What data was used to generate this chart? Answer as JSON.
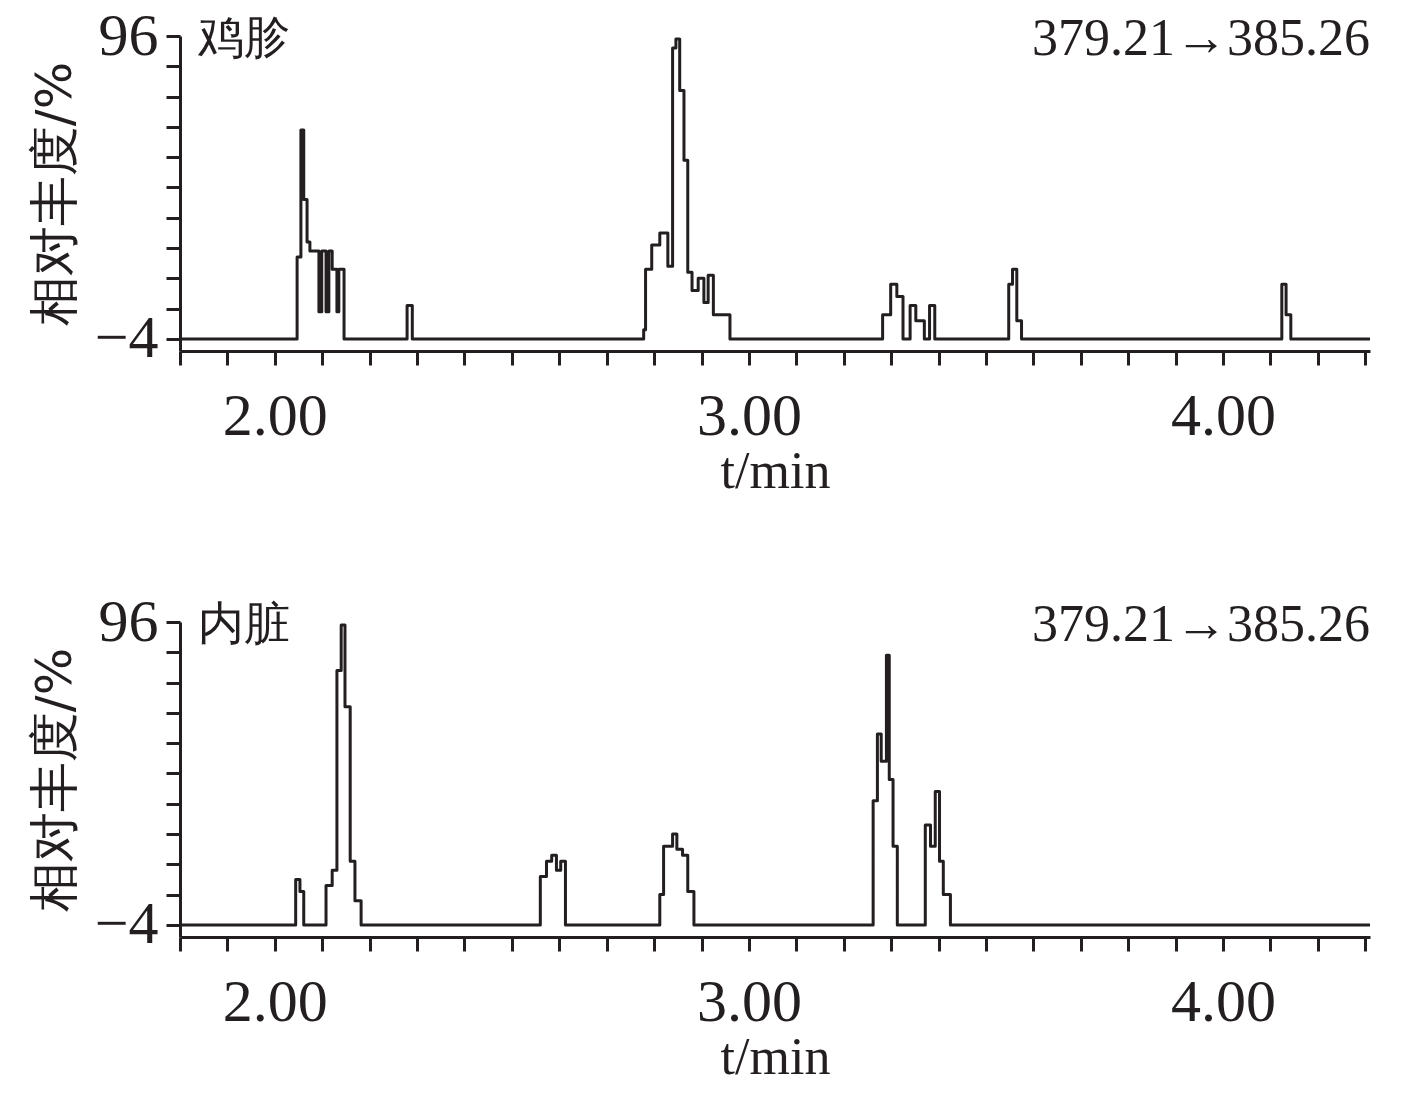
{
  "chart_data": [
    {
      "type": "step",
      "xlabel": "t/min",
      "ylabel": "相对丰度/%",
      "annotations": [
        "鸡胗",
        "379.21→385.26"
      ],
      "x": [
        1.8,
        2.047,
        2.055,
        2.061,
        2.068,
        2.074,
        2.093,
        2.099,
        2.108,
        2.114,
        2.121,
        2.131,
        2.135,
        2.146,
        2.279,
        2.29,
        2.778,
        2.782,
        2.795,
        2.812,
        2.829,
        2.839,
        2.846,
        2.854,
        2.863,
        2.871,
        2.88,
        2.893,
        2.905,
        2.914,
        2.925,
        2.935,
        2.96,
        3.282,
        3.299,
        3.312,
        3.325,
        3.34,
        3.352,
        3.37,
        3.381,
        3.392,
        3.548,
        3.556,
        3.565,
        3.575,
        4.124,
        4.133,
        4.143,
        4.31
      ],
      "series": [
        {
          "color": "#231f20",
          "values": [
            -4,
            23,
            65,
            42,
            28,
            25,
            5,
            25,
            5,
            25,
            19,
            5,
            19,
            -4,
            7,
            -4,
            -1,
            19,
            27,
            31,
            20,
            92,
            95,
            78,
            55,
            18,
            12,
            16,
            8,
            17,
            4,
            4,
            -4,
            4,
            14,
            10,
            -4,
            7,
            2,
            -4,
            7,
            -4,
            14,
            19,
            2,
            -4,
            14,
            4,
            -4,
            -4
          ]
        }
      ],
      "xlim": [
        1.8,
        4.31
      ],
      "ylim": [
        -8,
        96
      ],
      "xticks": [
        {
          "value": 1.8,
          "label": null
        },
        {
          "value": 1.9,
          "label": null
        },
        {
          "value": 2,
          "label": "2.00"
        },
        {
          "value": 2.1,
          "label": null
        },
        {
          "value": 2.2,
          "label": null
        },
        {
          "value": 2.3,
          "label": null
        },
        {
          "value": 2.4,
          "label": null
        },
        {
          "value": 2.5,
          "label": null
        },
        {
          "value": 2.6,
          "label": null
        },
        {
          "value": 2.7,
          "label": null
        },
        {
          "value": 2.8,
          "label": null
        },
        {
          "value": 2.9,
          "label": null
        },
        {
          "value": 3,
          "label": "3.00"
        },
        {
          "value": 3.1,
          "label": null
        },
        {
          "value": 3.2,
          "label": null
        },
        {
          "value": 3.3,
          "label": null
        },
        {
          "value": 3.4,
          "label": null
        },
        {
          "value": 3.5,
          "label": null
        },
        {
          "value": 3.6,
          "label": null
        },
        {
          "value": 3.7,
          "label": null
        },
        {
          "value": 3.8,
          "label": null
        },
        {
          "value": 3.9,
          "label": null
        },
        {
          "value": 4,
          "label": "4.00"
        },
        {
          "value": 4.1,
          "label": null
        },
        {
          "value": 4.2,
          "label": null
        },
        {
          "value": 4.3,
          "label": null
        }
      ],
      "yticks": [
        {
          "value": -4,
          "label": "−4"
        },
        {
          "value": 6,
          "label": null
        },
        {
          "value": 16,
          "label": null
        },
        {
          "value": 26,
          "label": null
        },
        {
          "value": 36,
          "label": null
        },
        {
          "value": 46,
          "label": null
        },
        {
          "value": 56,
          "label": null
        },
        {
          "value": 66,
          "label": null
        },
        {
          "value": 76,
          "label": null
        },
        {
          "value": 86,
          "label": null
        },
        96
      ]
    },
    {
      "type": "step",
      "xlabel": "t/min",
      "ylabel": "相对丰度/%",
      "annotations": [
        "内脏",
        "379.21→385.26"
      ],
      "x": [
        1.8,
        2.044,
        2.053,
        2.061,
        2.108,
        2.121,
        2.131,
        2.14,
        2.148,
        2.159,
        2.169,
        2.182,
        2.56,
        2.573,
        2.584,
        2.594,
        2.603,
        2.613,
        2.812,
        2.82,
        2.839,
        2.848,
        2.86,
        2.871,
        2.884,
        3.262,
        3.271,
        3.279,
        3.29,
        3.296,
        3.304,
        3.313,
        3.372,
        3.383,
        3.393,
        3.402,
        3.41,
        3.425,
        4.31
      ],
      "series": [
        {
          "color": "#231f20",
          "values": [
            -4,
            11,
            7,
            -4,
            9,
            14,
            80,
            95,
            68,
            17,
            4,
            -4,
            12,
            17,
            19,
            14,
            17,
            -4,
            6,
            22,
            26,
            21,
            19,
            7,
            -4,
            37,
            59,
            50,
            85,
            44,
            22,
            -4,
            29,
            22,
            40,
            17,
            6,
            -4,
            -4
          ]
        }
      ],
      "xlim": [
        1.8,
        4.31
      ],
      "ylim": [
        -8,
        96
      ],
      "xticks": [
        {
          "value": 1.8,
          "label": null
        },
        {
          "value": 1.9,
          "label": null
        },
        {
          "value": 2,
          "label": "2.00"
        },
        {
          "value": 2.1,
          "label": null
        },
        {
          "value": 2.2,
          "label": null
        },
        {
          "value": 2.3,
          "label": null
        },
        {
          "value": 2.4,
          "label": null
        },
        {
          "value": 2.5,
          "label": null
        },
        {
          "value": 2.6,
          "label": null
        },
        {
          "value": 2.7,
          "label": null
        },
        {
          "value": 2.8,
          "label": null
        },
        {
          "value": 2.9,
          "label": null
        },
        {
          "value": 3,
          "label": "3.00"
        },
        {
          "value": 3.1,
          "label": null
        },
        {
          "value": 3.2,
          "label": null
        },
        {
          "value": 3.3,
          "label": null
        },
        {
          "value": 3.4,
          "label": null
        },
        {
          "value": 3.5,
          "label": null
        },
        {
          "value": 3.6,
          "label": null
        },
        {
          "value": 3.7,
          "label": null
        },
        {
          "value": 3.8,
          "label": null
        },
        {
          "value": 3.9,
          "label": null
        },
        {
          "value": 4,
          "label": "4.00"
        },
        {
          "value": 4.1,
          "label": null
        },
        {
          "value": 4.2,
          "label": null
        },
        {
          "value": 4.3,
          "label": null
        }
      ],
      "yticks": [
        {
          "value": -4,
          "label": "−4"
        },
        {
          "value": 6,
          "label": null
        },
        {
          "value": 16,
          "label": null
        },
        {
          "value": 26,
          "label": null
        },
        {
          "value": 36,
          "label": null
        },
        {
          "value": 46,
          "label": null
        },
        {
          "value": 56,
          "label": null
        },
        {
          "value": 66,
          "label": null
        },
        {
          "value": 76,
          "label": null
        },
        {
          "value": 86,
          "label": null
        },
        96
      ]
    }
  ]
}
